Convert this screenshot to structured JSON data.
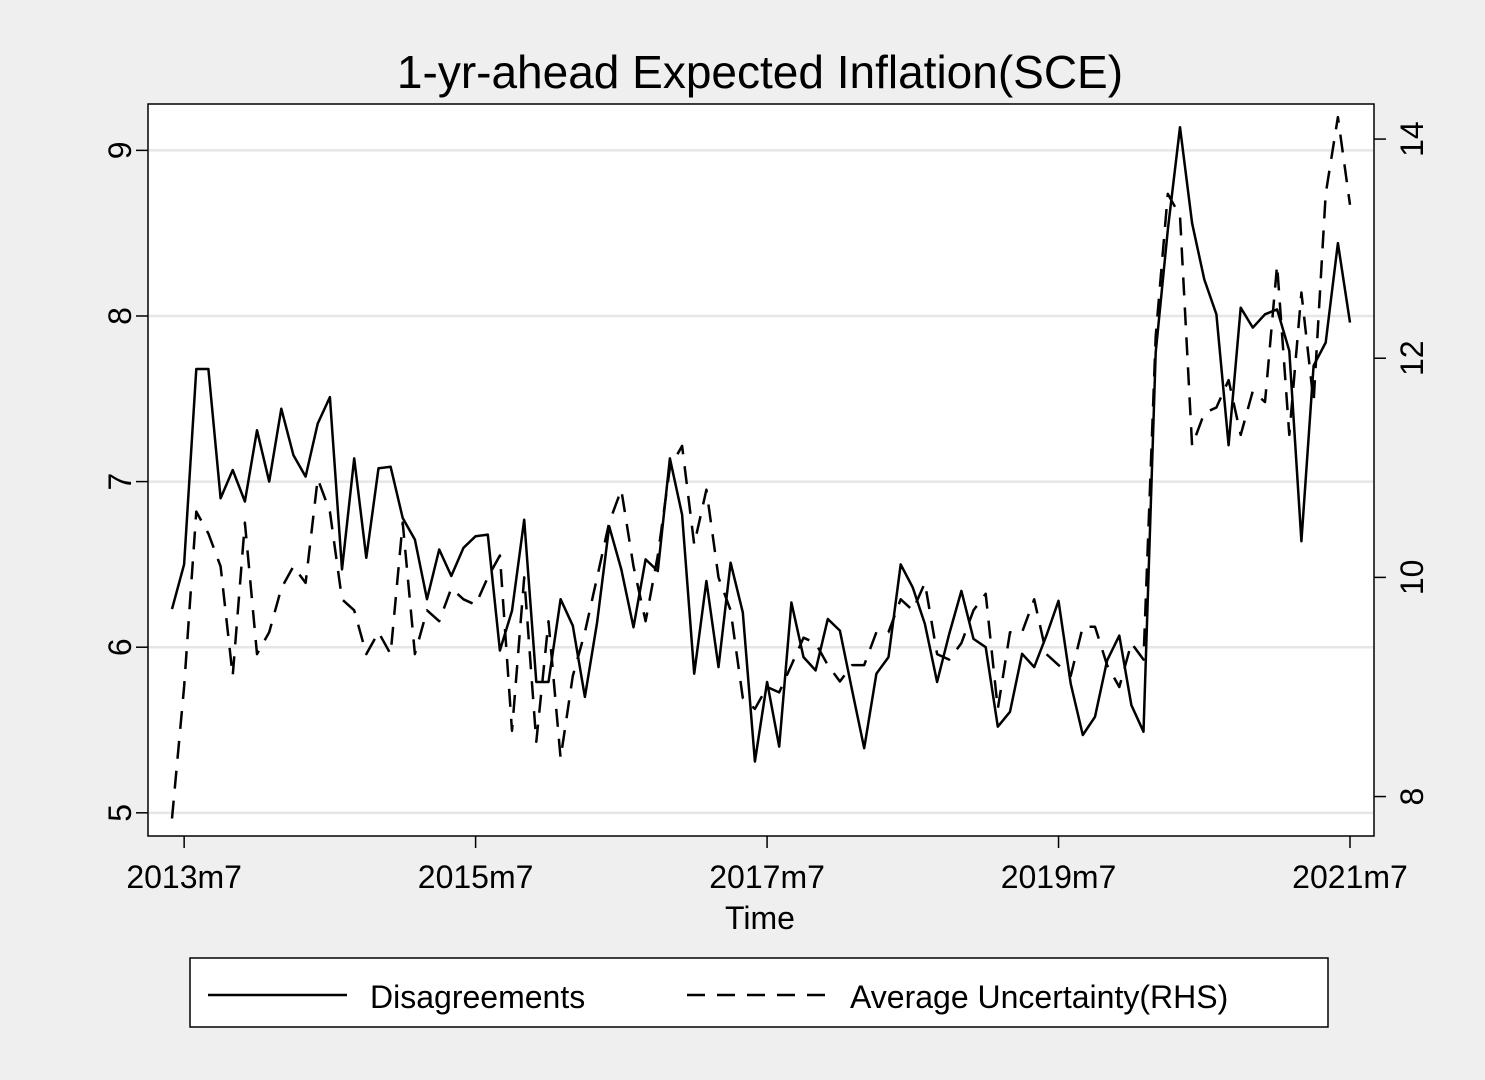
{
  "chart_data": {
    "type": "line",
    "title": "1-yr-ahead Expected Inflation(SCE)",
    "xlabel": "Time",
    "ylabel": "",
    "ylabel_right": "",
    "x_ticks": [
      "2013m7",
      "2015m7",
      "2017m7",
      "2019m7",
      "2021m7"
    ],
    "x_range": [
      "2013m6",
      "2021m7"
    ],
    "y_left": {
      "ticks": [
        5,
        6,
        7,
        8,
        9
      ],
      "range": [
        4.86,
        9.28
      ]
    },
    "y_right": {
      "ticks": [
        8,
        10,
        12,
        14
      ],
      "range": [
        7.64,
        14.32
      ]
    },
    "grid": true,
    "legend_position": "bottom",
    "series": [
      {
        "name": "Disagreements",
        "axis": "left",
        "style": "solid",
        "x_start": "2013m6",
        "values": [
          6.23,
          6.5,
          7.68,
          7.68,
          6.9,
          7.07,
          6.88,
          7.31,
          7.0,
          7.44,
          7.16,
          7.03,
          7.35,
          7.51,
          6.47,
          7.14,
          6.54,
          7.08,
          7.09,
          6.78,
          6.65,
          6.29,
          6.59,
          6.43,
          6.6,
          6.67,
          6.68,
          5.98,
          6.22,
          6.77,
          5.79,
          5.79,
          6.29,
          6.13,
          5.7,
          6.15,
          6.73,
          6.47,
          6.12,
          6.53,
          6.46,
          7.14,
          6.8,
          5.84,
          6.4,
          5.88,
          6.51,
          6.21,
          5.31,
          5.79,
          5.4,
          6.27,
          5.94,
          5.86,
          6.17,
          6.1,
          5.74,
          5.39,
          5.84,
          5.94,
          6.5,
          6.36,
          6.14,
          5.79,
          6.08,
          6.34,
          6.05,
          6.0,
          5.52,
          5.61,
          5.96,
          5.88,
          6.07,
          6.28,
          5.78,
          5.47,
          5.58,
          5.92,
          6.07,
          5.65,
          5.49,
          7.78,
          8.52,
          9.14,
          8.56,
          8.22,
          8.01,
          7.22,
          8.05,
          7.93,
          8.01,
          8.04,
          7.79,
          6.64,
          7.7,
          7.84,
          8.44,
          7.96
        ]
      },
      {
        "name": "Average Uncertainty(RHS)",
        "axis": "right",
        "style": "dashed",
        "x_start": "2013m6",
        "values": [
          7.8,
          9.0,
          10.6,
          10.4,
          10.1,
          9.1,
          10.5,
          9.3,
          9.5,
          9.9,
          10.1,
          9.95,
          10.9,
          10.6,
          9.8,
          9.7,
          9.3,
          9.5,
          9.3,
          10.5,
          9.3,
          9.7,
          9.6,
          9.9,
          9.8,
          9.75,
          10.0,
          10.2,
          8.6,
          10.0,
          8.5,
          9.6,
          8.35,
          9.1,
          9.5,
          10.0,
          10.5,
          10.8,
          10.1,
          9.6,
          10.2,
          11.0,
          11.2,
          10.3,
          10.8,
          10.0,
          9.7,
          8.9,
          8.8,
          9.0,
          8.95,
          9.2,
          9.45,
          9.4,
          9.2,
          9.05,
          9.2,
          9.2,
          9.5,
          9.5,
          9.8,
          9.7,
          9.95,
          9.3,
          9.25,
          9.4,
          9.7,
          9.85,
          8.8,
          9.5,
          9.5,
          9.8,
          9.3,
          9.2,
          9.1,
          9.55,
          9.55,
          9.2,
          9.0,
          9.4,
          9.25,
          12.2,
          13.5,
          13.3,
          11.2,
          11.5,
          11.55,
          11.8,
          11.3,
          11.7,
          11.6,
          12.85,
          11.3,
          12.6,
          11.6,
          13.5,
          14.2,
          13.4
        ]
      }
    ]
  }
}
